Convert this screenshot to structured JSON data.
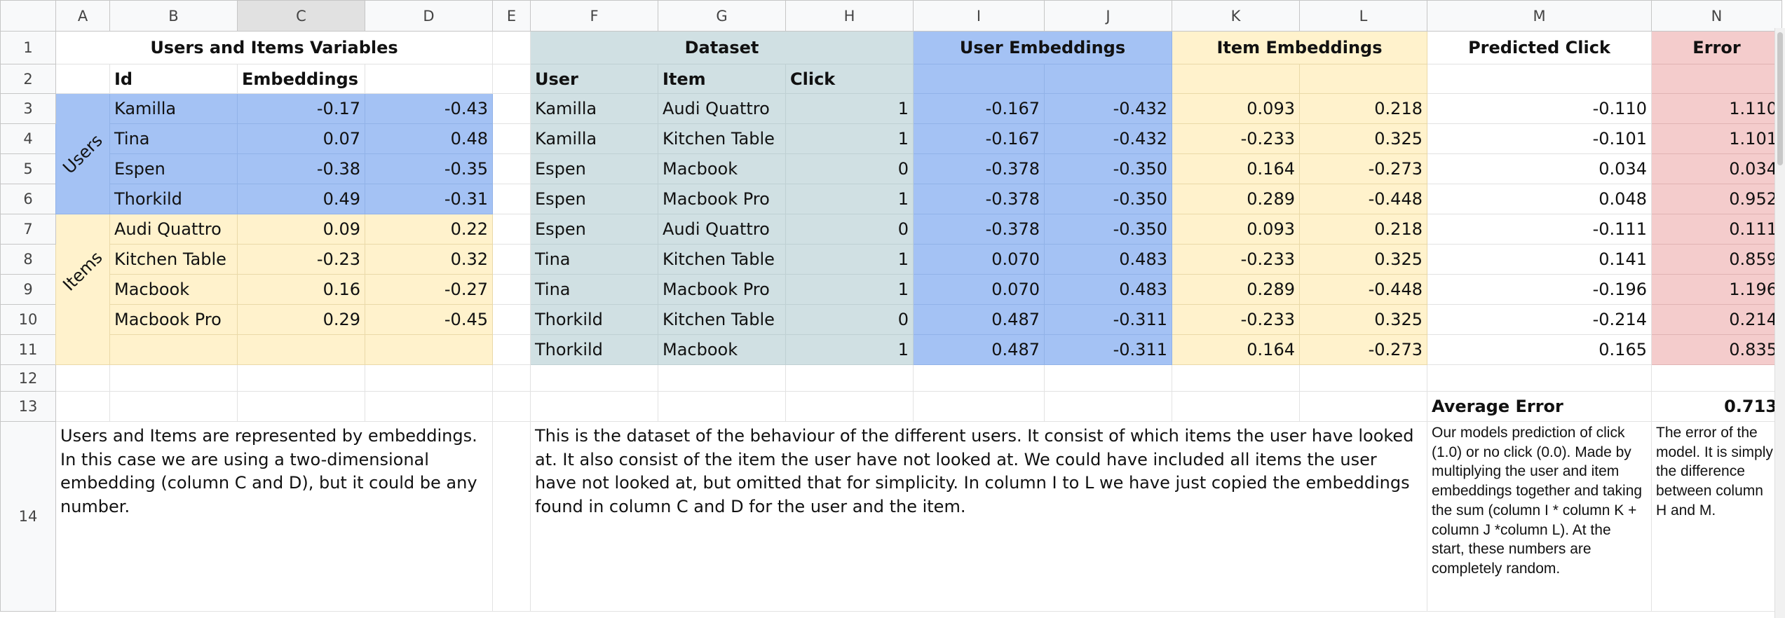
{
  "columns": [
    "A",
    "B",
    "C",
    "D",
    "E",
    "F",
    "G",
    "H",
    "I",
    "J",
    "K",
    "L",
    "M",
    "N"
  ],
  "selected_column": "C",
  "row_numbers": [
    "1",
    "2",
    "3",
    "4",
    "5",
    "6",
    "7",
    "8",
    "9",
    "10",
    "11",
    "12",
    "13",
    "14"
  ],
  "users_items": {
    "title": "Users and Items Variables",
    "id_header": "Id",
    "embeddings_header": "Embeddings",
    "users_label": "Users",
    "items_label": "Items",
    "users": [
      {
        "id": "Kamilla",
        "e1": "-0.17",
        "e2": "-0.43"
      },
      {
        "id": "Tina",
        "e1": "0.07",
        "e2": "0.48"
      },
      {
        "id": "Espen",
        "e1": "-0.38",
        "e2": "-0.35"
      },
      {
        "id": "Thorkild",
        "e1": "0.49",
        "e2": "-0.31"
      }
    ],
    "items": [
      {
        "id": "Audi Quattro",
        "e1": "0.09",
        "e2": "0.22"
      },
      {
        "id": "Kitchen Table",
        "e1": "-0.23",
        "e2": "0.32"
      },
      {
        "id": "Macbook",
        "e1": "0.16",
        "e2": "-0.27"
      },
      {
        "id": "Macbook Pro",
        "e1": "0.29",
        "e2": "-0.45"
      }
    ],
    "note": "Users and Items are represented by embeddings. In this case we are using a two-dimensional embedding (column C and D), but it could be any number."
  },
  "dataset": {
    "title": "Dataset",
    "user_header": "User",
    "item_header": "Item",
    "click_header": "Click",
    "user_emb_title": "User Embeddings",
    "item_emb_title": "Item Embeddings",
    "pred_title": "Predicted Click",
    "error_title": "Error",
    "rows": [
      {
        "user": "Kamilla",
        "item": "Audi Quattro",
        "click": "1",
        "u1": "-0.167",
        "u2": "-0.432",
        "i1": "0.093",
        "i2": "0.218",
        "pred": "-0.110",
        "err": "1.110"
      },
      {
        "user": "Kamilla",
        "item": "Kitchen Table",
        "click": "1",
        "u1": "-0.167",
        "u2": "-0.432",
        "i1": "-0.233",
        "i2": "0.325",
        "pred": "-0.101",
        "err": "1.101"
      },
      {
        "user": "Espen",
        "item": "Macbook",
        "click": "0",
        "u1": "-0.378",
        "u2": "-0.350",
        "i1": "0.164",
        "i2": "-0.273",
        "pred": "0.034",
        "err": "0.034"
      },
      {
        "user": "Espen",
        "item": "Macbook Pro",
        "click": "1",
        "u1": "-0.378",
        "u2": "-0.350",
        "i1": "0.289",
        "i2": "-0.448",
        "pred": "0.048",
        "err": "0.952"
      },
      {
        "user": "Espen",
        "item": "Audi Quattro",
        "click": "0",
        "u1": "-0.378",
        "u2": "-0.350",
        "i1": "0.093",
        "i2": "0.218",
        "pred": "-0.111",
        "err": "0.111"
      },
      {
        "user": "Tina",
        "item": "Kitchen Table",
        "click": "1",
        "u1": "0.070",
        "u2": "0.483",
        "i1": "-0.233",
        "i2": "0.325",
        "pred": "0.141",
        "err": "0.859"
      },
      {
        "user": "Tina",
        "item": "Macbook Pro",
        "click": "1",
        "u1": "0.070",
        "u2": "0.483",
        "i1": "0.289",
        "i2": "-0.448",
        "pred": "-0.196",
        "err": "1.196"
      },
      {
        "user": "Thorkild",
        "item": "Kitchen Table",
        "click": "0",
        "u1": "0.487",
        "u2": "-0.311",
        "i1": "-0.233",
        "i2": "0.325",
        "pred": "-0.214",
        "err": "0.214"
      },
      {
        "user": "Thorkild",
        "item": "Macbook",
        "click": "1",
        "u1": "0.487",
        "u2": "-0.311",
        "i1": "0.164",
        "i2": "-0.273",
        "pred": "0.165",
        "err": "0.835"
      }
    ],
    "avg_error_label": "Average Error",
    "avg_error_value": "0.713",
    "note": "This is the dataset of the behaviour of the different users. It consist of which items the user have looked at. It also consist of the item the user have not looked at. We could have included all items the user have not looked at, but omitted that for simplicity. In column I to L we have just copied the embeddings found in column C and D for the user and the item.",
    "pred_note": "Our models prediction of click (1.0) or no click (0.0). Made by multiplying the user and item embeddings together and taking the sum (column I * column K + column J *column L). At the start, these numbers are completely random.",
    "error_note": "The error of the model. It is simply the difference between column H and M."
  },
  "colors": {
    "teal": "#d0e0e3",
    "blue": "#a4c2f4",
    "yellow": "#fff2cc",
    "pink": "#f4cccc",
    "header_gray": "#f8f9fa"
  }
}
